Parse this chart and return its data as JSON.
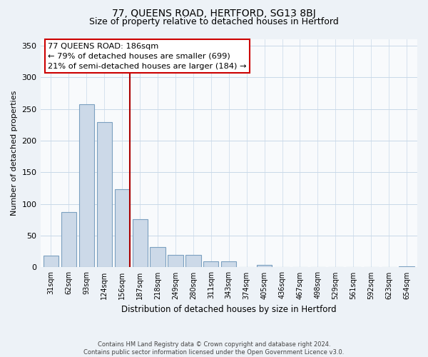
{
  "title": "77, QUEENS ROAD, HERTFORD, SG13 8BJ",
  "subtitle": "Size of property relative to detached houses in Hertford",
  "xlabel": "Distribution of detached houses by size in Hertford",
  "ylabel": "Number of detached properties",
  "categories": [
    "31sqm",
    "62sqm",
    "93sqm",
    "124sqm",
    "156sqm",
    "187sqm",
    "218sqm",
    "249sqm",
    "280sqm",
    "311sqm",
    "343sqm",
    "374sqm",
    "405sqm",
    "436sqm",
    "467sqm",
    "498sqm",
    "529sqm",
    "561sqm",
    "592sqm",
    "623sqm",
    "654sqm"
  ],
  "values": [
    19,
    87,
    257,
    229,
    123,
    76,
    32,
    20,
    20,
    9,
    10,
    0,
    4,
    0,
    0,
    1,
    0,
    0,
    0,
    0,
    2
  ],
  "bar_color": "#ccd9e8",
  "bar_edge_color": "#7ba0c0",
  "vline_color": "#aa0000",
  "vline_index": 4,
  "annotation_text_line1": "77 QUEENS ROAD: 186sqm",
  "annotation_text_line2": "← 79% of detached houses are smaller (699)",
  "annotation_text_line3": "21% of semi-detached houses are larger (184) →",
  "annotation_box_color": "#ffffff",
  "annotation_box_edge": "#cc0000",
  "ylim": [
    0,
    360
  ],
  "yticks": [
    0,
    50,
    100,
    150,
    200,
    250,
    300,
    350
  ],
  "footer": "Contains HM Land Registry data © Crown copyright and database right 2024.\nContains public sector information licensed under the Open Government Licence v3.0.",
  "bg_color": "#edf2f7",
  "plot_bg_color": "#f8fafc",
  "grid_color": "#c8d8e8",
  "title_fontsize": 10,
  "subtitle_fontsize": 9
}
